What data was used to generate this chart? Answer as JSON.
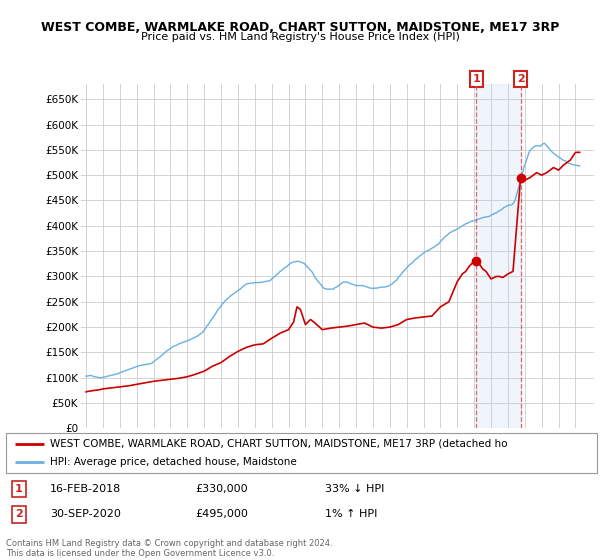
{
  "title1": "WEST COMBE, WARMLAKE ROAD, CHART SUTTON, MAIDSTONE, ME17 3RP",
  "title2": "Price paid vs. HM Land Registry's House Price Index (HPI)",
  "ylim": [
    0,
    680000
  ],
  "yticks": [
    0,
    50000,
    100000,
    150000,
    200000,
    250000,
    300000,
    350000,
    400000,
    450000,
    500000,
    550000,
    600000,
    650000
  ],
  "hpi_color": "#6ab0e0",
  "price_color": "#cc0000",
  "annotation_color": "#cc2222",
  "background_color": "#ffffff",
  "grid_color": "#cccccc",
  "shade_color": "#ddeeff",
  "legend_label_red": "WEST COMBE, WARMLAKE ROAD, CHART SUTTON, MAIDSTONE, ME17 3RP (detached ho",
  "legend_label_blue": "HPI: Average price, detached house, Maidstone",
  "annotation1_date": "16-FEB-2018",
  "annotation1_price": "£330,000",
  "annotation1_hpi": "33% ↓ HPI",
  "annotation2_date": "30-SEP-2020",
  "annotation2_price": "£495,000",
  "annotation2_hpi": "1% ↑ HPI",
  "footer": "Contains HM Land Registry data © Crown copyright and database right 2024.\nThis data is licensed under the Open Government Licence v3.0.",
  "hpi_x": [
    1995.0,
    1995.083,
    1995.167,
    1995.25,
    1995.333,
    1995.417,
    1995.5,
    1995.583,
    1995.667,
    1995.75,
    1995.833,
    1995.917,
    1996.0,
    1996.083,
    1996.167,
    1996.25,
    1996.333,
    1996.417,
    1996.5,
    1996.583,
    1996.667,
    1996.75,
    1996.833,
    1996.917,
    1997.0,
    1997.083,
    1997.167,
    1997.25,
    1997.333,
    1997.417,
    1997.5,
    1997.583,
    1997.667,
    1997.75,
    1997.833,
    1997.917,
    1998.0,
    1998.083,
    1998.167,
    1998.25,
    1998.333,
    1998.417,
    1998.5,
    1998.583,
    1998.667,
    1998.75,
    1998.833,
    1998.917,
    1999.0,
    1999.083,
    1999.167,
    1999.25,
    1999.333,
    1999.417,
    1999.5,
    1999.583,
    1999.667,
    1999.75,
    1999.833,
    1999.917,
    2000.0,
    2000.083,
    2000.167,
    2000.25,
    2000.333,
    2000.417,
    2000.5,
    2000.583,
    2000.667,
    2000.75,
    2000.833,
    2000.917,
    2001.0,
    2001.083,
    2001.167,
    2001.25,
    2001.333,
    2001.417,
    2001.5,
    2001.583,
    2001.667,
    2001.75,
    2001.833,
    2001.917,
    2002.0,
    2002.083,
    2002.167,
    2002.25,
    2002.333,
    2002.417,
    2002.5,
    2002.583,
    2002.667,
    2002.75,
    2002.833,
    2002.917,
    2003.0,
    2003.083,
    2003.167,
    2003.25,
    2003.333,
    2003.417,
    2003.5,
    2003.583,
    2003.667,
    2003.75,
    2003.833,
    2003.917,
    2004.0,
    2004.083,
    2004.167,
    2004.25,
    2004.333,
    2004.417,
    2004.5,
    2004.583,
    2004.667,
    2004.75,
    2004.833,
    2004.917,
    2005.0,
    2005.083,
    2005.167,
    2005.25,
    2005.333,
    2005.417,
    2005.5,
    2005.583,
    2005.667,
    2005.75,
    2005.833,
    2005.917,
    2006.0,
    2006.083,
    2006.167,
    2006.25,
    2006.333,
    2006.417,
    2006.5,
    2006.583,
    2006.667,
    2006.75,
    2006.833,
    2006.917,
    2007.0,
    2007.083,
    2007.167,
    2007.25,
    2007.333,
    2007.417,
    2007.5,
    2007.583,
    2007.667,
    2007.75,
    2007.833,
    2007.917,
    2008.0,
    2008.083,
    2008.167,
    2008.25,
    2008.333,
    2008.417,
    2008.5,
    2008.583,
    2008.667,
    2008.75,
    2008.833,
    2008.917,
    2009.0,
    2009.083,
    2009.167,
    2009.25,
    2009.333,
    2009.417,
    2009.5,
    2009.583,
    2009.667,
    2009.75,
    2009.833,
    2009.917,
    2010.0,
    2010.083,
    2010.167,
    2010.25,
    2010.333,
    2010.417,
    2010.5,
    2010.583,
    2010.667,
    2010.75,
    2010.833,
    2010.917,
    2011.0,
    2011.083,
    2011.167,
    2011.25,
    2011.333,
    2011.417,
    2011.5,
    2011.583,
    2011.667,
    2011.75,
    2011.833,
    2011.917,
    2012.0,
    2012.083,
    2012.167,
    2012.25,
    2012.333,
    2012.417,
    2012.5,
    2012.583,
    2012.667,
    2012.75,
    2012.833,
    2012.917,
    2013.0,
    2013.083,
    2013.167,
    2013.25,
    2013.333,
    2013.417,
    2013.5,
    2013.583,
    2013.667,
    2013.75,
    2013.833,
    2013.917,
    2014.0,
    2014.083,
    2014.167,
    2014.25,
    2014.333,
    2014.417,
    2014.5,
    2014.583,
    2014.667,
    2014.75,
    2014.833,
    2014.917,
    2015.0,
    2015.083,
    2015.167,
    2015.25,
    2015.333,
    2015.417,
    2015.5,
    2015.583,
    2015.667,
    2015.75,
    2015.833,
    2015.917,
    2016.0,
    2016.083,
    2016.167,
    2016.25,
    2016.333,
    2016.417,
    2016.5,
    2016.583,
    2016.667,
    2016.75,
    2016.833,
    2016.917,
    2017.0,
    2017.083,
    2017.167,
    2017.25,
    2017.333,
    2017.417,
    2017.5,
    2017.583,
    2017.667,
    2017.75,
    2017.833,
    2017.917,
    2018.0,
    2018.083,
    2018.167,
    2018.25,
    2018.333,
    2018.417,
    2018.5,
    2018.583,
    2018.667,
    2018.75,
    2018.833,
    2018.917,
    2019.0,
    2019.083,
    2019.167,
    2019.25,
    2019.333,
    2019.417,
    2019.5,
    2019.583,
    2019.667,
    2019.75,
    2019.833,
    2019.917,
    2020.0,
    2020.083,
    2020.167,
    2020.25,
    2020.333,
    2020.417,
    2020.5,
    2020.583,
    2020.667,
    2020.75,
    2020.833,
    2020.917,
    2021.0,
    2021.083,
    2021.167,
    2021.25,
    2021.333,
    2021.417,
    2021.5,
    2021.583,
    2021.667,
    2021.75,
    2021.833,
    2021.917,
    2022.0,
    2022.083,
    2022.167,
    2022.25,
    2022.333,
    2022.417,
    2022.5,
    2022.583,
    2022.667,
    2022.75,
    2022.833,
    2022.917,
    2023.0,
    2023.083,
    2023.167,
    2023.25,
    2023.333,
    2023.417,
    2023.5,
    2023.583,
    2023.667,
    2023.75,
    2023.833,
    2023.917,
    2024.0,
    2024.083,
    2024.167,
    2024.25
  ],
  "hpi_y": [
    103000,
    103500,
    104000,
    104500,
    104000,
    103000,
    102000,
    101500,
    101000,
    100500,
    100000,
    100000,
    101000,
    101500,
    102000,
    103000,
    103500,
    104000,
    105000,
    105500,
    106000,
    107000,
    107500,
    108000,
    110000,
    111000,
    112000,
    113000,
    114000,
    115000,
    116000,
    117000,
    118000,
    119000,
    120000,
    121000,
    122000,
    123000,
    124000,
    124500,
    125000,
    125500,
    126000,
    126500,
    127000,
    127500,
    128000,
    129000,
    132000,
    134000,
    136000,
    138000,
    140000,
    142000,
    145000,
    147000,
    149000,
    152000,
    154000,
    156000,
    158000,
    160000,
    162000,
    163000,
    164000,
    165000,
    167000,
    168000,
    169000,
    170000,
    171000,
    172000,
    173000,
    174000,
    175000,
    177000,
    178000,
    179000,
    181000,
    182000,
    184000,
    186000,
    188000,
    190000,
    194000,
    198000,
    203000,
    205000,
    210000,
    214000,
    218000,
    222000,
    226000,
    231000,
    235000,
    238000,
    242000,
    246000,
    249000,
    252000,
    255000,
    257000,
    260000,
    262000,
    264000,
    266000,
    268000,
    270000,
    272000,
    274000,
    276000,
    279000,
    281000,
    283000,
    285000,
    286000,
    286000,
    287000,
    287000,
    287000,
    288000,
    288000,
    288000,
    288000,
    288000,
    289000,
    289000,
    290000,
    290000,
    291000,
    291000,
    292000,
    295000,
    297000,
    300000,
    302000,
    305000,
    307000,
    310000,
    312000,
    314000,
    317000,
    318000,
    320000,
    323000,
    325000,
    327000,
    328000,
    329000,
    329000,
    330000,
    330000,
    329000,
    328000,
    327000,
    326000,
    323000,
    320000,
    317000,
    314000,
    311000,
    308000,
    302000,
    297000,
    294000,
    290000,
    287000,
    284000,
    279000,
    277000,
    276000,
    275000,
    275000,
    275000,
    275000,
    275000,
    275000,
    278000,
    279000,
    281000,
    283000,
    285000,
    287000,
    289000,
    289000,
    289000,
    289000,
    287000,
    286000,
    285000,
    284000,
    283000,
    282000,
    282000,
    282000,
    282000,
    282000,
    282000,
    281000,
    280000,
    279000,
    278000,
    277000,
    277000,
    276000,
    277000,
    277000,
    277000,
    278000,
    278000,
    279000,
    279000,
    279000,
    280000,
    280000,
    281000,
    283000,
    284000,
    286000,
    289000,
    291000,
    293000,
    298000,
    301000,
    304000,
    308000,
    311000,
    314000,
    317000,
    320000,
    323000,
    325000,
    327000,
    330000,
    333000,
    335000,
    337000,
    340000,
    342000,
    344000,
    346000,
    348000,
    350000,
    351000,
    352000,
    354000,
    356000,
    357000,
    359000,
    362000,
    363000,
    365000,
    369000,
    372000,
    374000,
    378000,
    380000,
    382000,
    385000,
    387000,
    388000,
    390000,
    391000,
    392000,
    394000,
    395000,
    397000,
    399000,
    401000,
    402000,
    404000,
    405000,
    406000,
    408000,
    409000,
    410000,
    410000,
    411000,
    412000,
    413000,
    414000,
    415000,
    416000,
    417000,
    417000,
    418000,
    418000,
    419000,
    421000,
    422000,
    424000,
    425000,
    426000,
    428000,
    430000,
    431000,
    433000,
    436000,
    437000,
    439000,
    440000,
    441000,
    441000,
    442000,
    445000,
    450000,
    460000,
    470000,
    480000,
    490000,
    500000,
    512000,
    520000,
    528000,
    537000,
    545000,
    550000,
    552000,
    555000,
    557000,
    558000,
    558000,
    558000,
    557000,
    560000,
    562000,
    563000,
    560000,
    557000,
    553000,
    550000,
    547000,
    544000,
    542000,
    540000,
    538000,
    536000,
    534000,
    532000,
    530000,
    529000,
    528000,
    525000,
    524000,
    523000,
    522000,
    521000,
    520000,
    520000,
    519000,
    519000,
    518000
  ],
  "price_x": [
    1995.0,
    1995.08,
    1995.5,
    1995.75,
    1996.0,
    1996.5,
    1997.0,
    1997.5,
    1998.0,
    1998.5,
    1999.0,
    1999.5,
    2000.0,
    2000.5,
    2001.0,
    2001.5,
    2002.0,
    2002.5,
    2003.0,
    2003.5,
    2004.0,
    2004.5,
    2005.0,
    2005.5,
    2006.0,
    2006.5,
    2007.0,
    2007.3,
    2007.5,
    2007.7,
    2008.0,
    2008.3,
    2008.5,
    2009.0,
    2009.5,
    2010.0,
    2010.5,
    2011.0,
    2011.5,
    2012.0,
    2012.5,
    2013.0,
    2013.5,
    2014.0,
    2014.5,
    2015.0,
    2015.5,
    2016.0,
    2016.5,
    2017.0,
    2017.3,
    2017.5,
    2017.7,
    2018.0,
    2018.12,
    2018.3,
    2018.5,
    2018.7,
    2019.0,
    2019.3,
    2019.5,
    2019.7,
    2020.0,
    2020.3,
    2020.75,
    2020.9,
    2021.0,
    2021.3,
    2021.5,
    2021.7,
    2022.0,
    2022.3,
    2022.5,
    2022.7,
    2023.0,
    2023.3,
    2023.5,
    2023.7,
    2024.0,
    2024.25
  ],
  "price_y": [
    72000,
    73000,
    75000,
    76000,
    78000,
    80000,
    82000,
    84000,
    87000,
    90000,
    93000,
    95000,
    97000,
    99000,
    102000,
    107000,
    113000,
    123000,
    130000,
    142000,
    152000,
    160000,
    165000,
    167000,
    178000,
    188000,
    195000,
    210000,
    240000,
    235000,
    205000,
    215000,
    210000,
    195000,
    198000,
    200000,
    202000,
    205000,
    208000,
    200000,
    198000,
    200000,
    205000,
    215000,
    218000,
    220000,
    222000,
    240000,
    250000,
    290000,
    305000,
    310000,
    320000,
    330000,
    330000,
    325000,
    315000,
    310000,
    295000,
    300000,
    300000,
    298000,
    305000,
    310000,
    495000,
    490000,
    490000,
    495000,
    500000,
    505000,
    500000,
    505000,
    510000,
    515000,
    510000,
    520000,
    525000,
    530000,
    545000,
    545000
  ],
  "marker1_x": 2018.12,
  "marker1_y": 330000,
  "marker2_x": 2020.75,
  "marker2_y": 495000,
  "vline1_x": 2018.12,
  "vline2_x": 2020.75,
  "xlim_left": 1994.7,
  "xlim_right": 2025.1
}
